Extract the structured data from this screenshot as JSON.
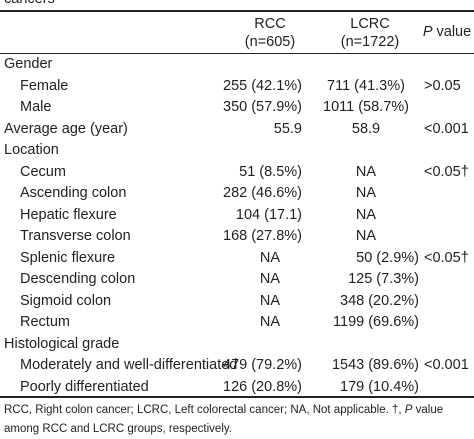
{
  "title_fragment": "cancers",
  "header": {
    "rcc_line1": "RCC",
    "rcc_line2": "(n=605)",
    "lcrc_line1": "LCRC",
    "lcrc_line2": "(n=1722)",
    "p_italic": "P",
    "p_rest": " value"
  },
  "rows": [
    {
      "label": "Gender",
      "rcc": "",
      "lcrc": "",
      "p": ""
    },
    {
      "label": "Female",
      "rcc": "255 (42.1%)",
      "lcrc": "711 (41.3%)",
      "p": ">0.05"
    },
    {
      "label": "Male",
      "rcc": "350 (57.9%)",
      "lcrc": "1011 (58.7%)",
      "p": ""
    },
    {
      "label": "Average age (year)",
      "rcc": "55.9",
      "lcrc": "58.9",
      "p": "<0.001"
    },
    {
      "label": "Location",
      "rcc": "",
      "lcrc": "",
      "p": ""
    },
    {
      "label": "Cecum",
      "rcc": "51 (8.5%)",
      "lcrc": "NA",
      "p": "<0.05†"
    },
    {
      "label": "Ascending colon",
      "rcc": "282 (46.6%)",
      "lcrc": "NA",
      "p": ""
    },
    {
      "label": "Hepatic flexure",
      "rcc": "104 (17.1)",
      "lcrc": "NA",
      "p": ""
    },
    {
      "label": "Transverse colon",
      "rcc": "168 (27.8%)",
      "lcrc": "NA",
      "p": ""
    },
    {
      "label": "Splenic flexure",
      "rcc": "NA",
      "lcrc": "50 (2.9%)",
      "p": "<0.05†"
    },
    {
      "label": "Descending colon",
      "rcc": "NA",
      "lcrc": "125 (7.3%)",
      "p": ""
    },
    {
      "label": "Sigmoid colon",
      "rcc": "NA",
      "lcrc": "348 (20.2%)",
      "p": ""
    },
    {
      "label": "Rectum",
      "rcc": "NA",
      "lcrc": "1199 (69.6%)",
      "p": ""
    },
    {
      "label": "Histological grade",
      "rcc": "",
      "lcrc": "",
      "p": ""
    },
    {
      "label": "Moderately and well-differentiated",
      "rcc": "479 (79.2%)",
      "lcrc": "1543 (89.6%)",
      "p": "<0.001"
    },
    {
      "label": "Poorly differentiated",
      "rcc": "126 (20.8%)",
      "lcrc": "179 (10.4%)",
      "p": ""
    }
  ],
  "footnote": {
    "line1_a": "RCC, Right colon cancer; LCRC, Left colorectal cancer; NA, Not applicable. †, ",
    "line1_p": "P",
    "line1_b": " value",
    "line2": "among RCC and LCRC groups, respectively."
  }
}
